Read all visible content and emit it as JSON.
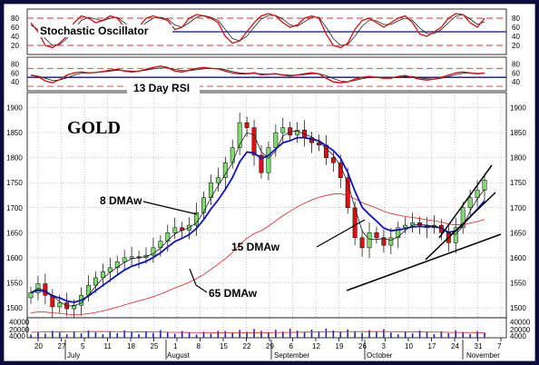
{
  "chart_data": {
    "type": "candlestick",
    "title": "GOLD",
    "x_tick_labels": [
      "20",
      "27",
      "5",
      "11",
      "18",
      "25",
      "1",
      "8",
      "15",
      "22",
      "29",
      "6",
      "12",
      "19",
      "26",
      "3",
      "10",
      "17",
      "24",
      "31",
      "7"
    ],
    "month_labels": [
      "July",
      "August",
      "September",
      "October",
      "November"
    ],
    "price_axis": {
      "ylim": [
        1480,
        1930
      ],
      "ticks": [
        1500,
        1550,
        1600,
        1650,
        1700,
        1750,
        1800,
        1850,
        1900
      ]
    },
    "volume_axis": {
      "ylim": [
        0,
        50000
      ],
      "ticks": [
        4000,
        20000,
        40000
      ]
    },
    "stochastic": {
      "label": "Stochastic Oscillator",
      "ylim": [
        0,
        100
      ],
      "ticks": [
        20,
        40,
        60,
        80
      ],
      "levels": [
        20,
        80
      ],
      "k": [
        70,
        50,
        20,
        15,
        25,
        40,
        70,
        85,
        80,
        70,
        75,
        85,
        80,
        60,
        45,
        60,
        80,
        85,
        80,
        75,
        55,
        60,
        80,
        88,
        85,
        80,
        70,
        40,
        25,
        30,
        50,
        70,
        85,
        90,
        85,
        70,
        60,
        65,
        80,
        85,
        80,
        45,
        20,
        15,
        25,
        55,
        75,
        80,
        70,
        60,
        70,
        80,
        85,
        70,
        45,
        40,
        50,
        60,
        80,
        90,
        88,
        70,
        60,
        80
      ],
      "d": [
        65,
        55,
        35,
        20,
        22,
        35,
        55,
        75,
        82,
        78,
        74,
        80,
        82,
        70,
        55,
        55,
        70,
        80,
        82,
        78,
        65,
        60,
        70,
        82,
        86,
        82,
        75,
        55,
        35,
        30,
        40,
        60,
        78,
        86,
        86,
        78,
        65,
        62,
        72,
        82,
        82,
        60,
        35,
        20,
        22,
        40,
        62,
        76,
        74,
        66,
        66,
        74,
        80,
        75,
        58,
        46,
        46,
        55,
        70,
        84,
        88,
        78,
        66,
        72
      ]
    },
    "rsi": {
      "label": "13 Day RSI",
      "ylim": [
        20,
        95
      ],
      "ticks": [
        40,
        60,
        80
      ],
      "levels": [
        30,
        50,
        70
      ],
      "values": [
        55,
        52,
        42,
        38,
        45,
        55,
        60,
        62,
        60,
        61,
        63,
        66,
        68,
        64,
        62,
        64,
        68,
        72,
        75,
        72,
        64,
        62,
        66,
        70,
        72,
        70,
        69,
        64,
        60,
        58,
        58,
        60,
        56,
        57,
        58,
        55,
        53,
        55,
        58,
        60,
        58,
        48,
        40,
        38,
        40,
        46,
        50,
        52,
        50,
        48,
        48,
        52,
        54,
        50,
        46,
        44,
        46,
        50,
        55,
        60,
        62,
        60,
        58,
        60
      ],
      "ma": [
        54,
        53,
        48,
        43,
        44,
        49,
        55,
        59,
        60,
        61,
        62,
        64,
        66,
        65,
        64,
        64,
        66,
        69,
        71,
        71,
        68,
        65,
        65,
        67,
        69,
        70,
        69,
        67,
        63,
        60,
        59,
        59,
        58,
        57,
        57,
        56,
        55,
        55,
        56,
        58,
        58,
        54,
        47,
        42,
        40,
        43,
        47,
        50,
        51,
        50,
        49,
        50,
        52,
        52,
        49,
        47,
        46,
        48,
        52,
        56,
        59,
        60,
        59,
        59
      ]
    },
    "close": [
      1530,
      1548,
      1525,
      1502,
      1510,
      1498,
      1505,
      1525,
      1545,
      1560,
      1572,
      1580,
      1592,
      1600,
      1602,
      1600,
      1605,
      1620,
      1633,
      1650,
      1660,
      1655,
      1665,
      1690,
      1720,
      1750,
      1760,
      1790,
      1820,
      1870,
      1860,
      1805,
      1770,
      1820,
      1850,
      1860,
      1845,
      1855,
      1840,
      1830,
      1825,
      1800,
      1790,
      1760,
      1700,
      1640,
      1620,
      1650,
      1640,
      1625,
      1640,
      1660,
      1665,
      1670,
      1665,
      1660,
      1665,
      1650,
      1630,
      1660,
      1700,
      1720,
      1735,
      1755
    ],
    "ma_labels": [
      "8 DMAw",
      "15 DMAw",
      "65 DMAw"
    ]
  }
}
